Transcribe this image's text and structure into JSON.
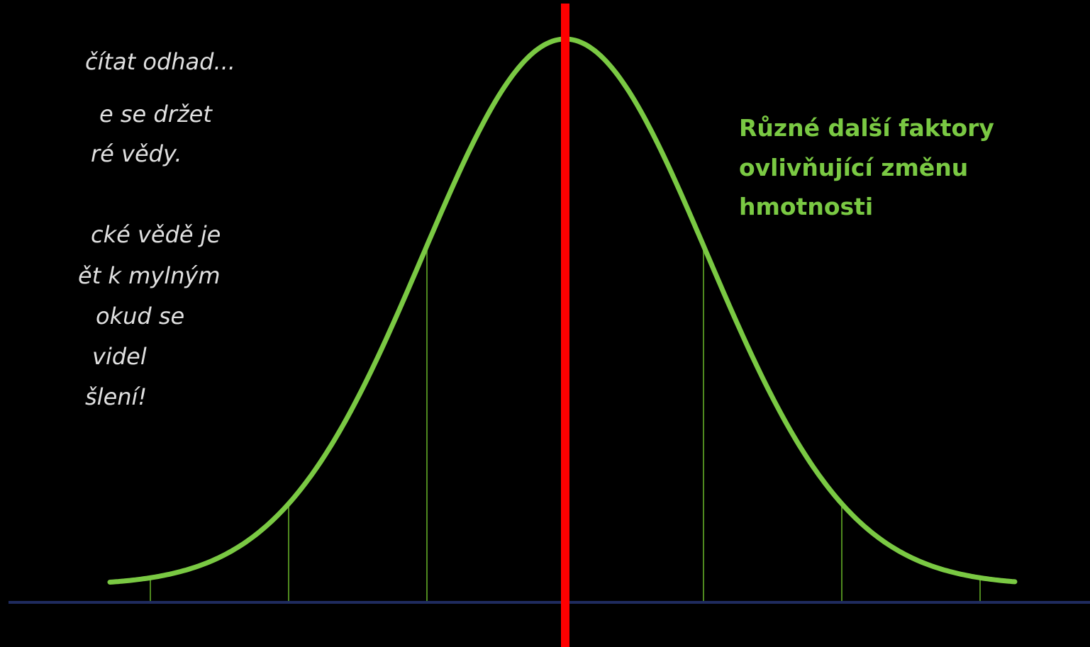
{
  "left_text": {
    "lines": [
      "čítat odhad...",
      "e se držet",
      "ré vědy.",
      "cké vědě je",
      "ět k mylným",
      "okud se",
      "videl",
      "šlení!"
    ]
  },
  "right_text": {
    "lines": [
      "Různé další faktory",
      "ovlivňující změnu",
      "hmotnosti"
    ]
  }
}
